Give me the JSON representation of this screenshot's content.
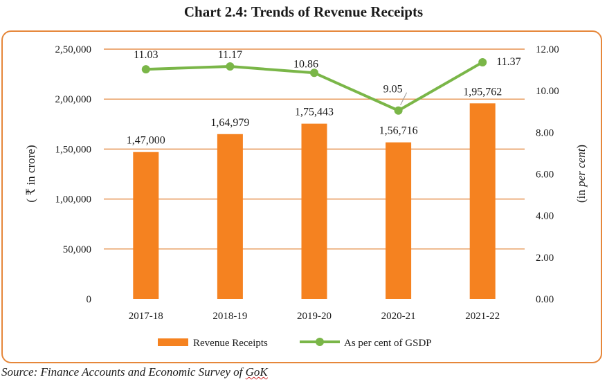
{
  "chart_data": {
    "type": "bar+line",
    "title": "Chart 2.4: Trends of Revenue Receipts",
    "categories": [
      "2017-18",
      "2018-19",
      "2019-20",
      "2020-21",
      "2021-22"
    ],
    "series": [
      {
        "name": "Revenue Receipts",
        "kind": "bar",
        "axis": "left",
        "color": "#f58220",
        "values": [
          147000,
          164979,
          175443,
          156716,
          195762
        ],
        "labels": [
          "1,47,000",
          "1,64,979",
          "1,75,443",
          "1,56,716",
          "1,95,762"
        ]
      },
      {
        "name": "As per cent of GSDP",
        "kind": "line",
        "axis": "right",
        "color": "#7ab648",
        "values": [
          11.03,
          11.17,
          10.86,
          9.05,
          11.37
        ],
        "labels": [
          "11.03",
          "11.17",
          "10.86",
          "9.05",
          "11.37"
        ]
      }
    ],
    "y_left": {
      "label": "( ₹ in crore)",
      "ylim": [
        0,
        250000
      ],
      "ticks": [
        "0",
        "50,000",
        "1,00,000",
        "1,50,000",
        "2,00,000",
        "2,50,000"
      ]
    },
    "y_right": {
      "label_prefix": "(in ",
      "label_italic": "per cent",
      "label_suffix": ")",
      "ylim": [
        0,
        12
      ],
      "ticks": [
        "0.00",
        "2.00",
        "4.00",
        "6.00",
        "8.00",
        "10.00",
        "12.00"
      ]
    },
    "grid": "horizontal",
    "gridline_color": "#e07b2a",
    "legend_position": "bottom"
  },
  "source": {
    "prefix": "Source: Finance Accounts and Economic Survey of ",
    "emphasis": "GoK"
  }
}
